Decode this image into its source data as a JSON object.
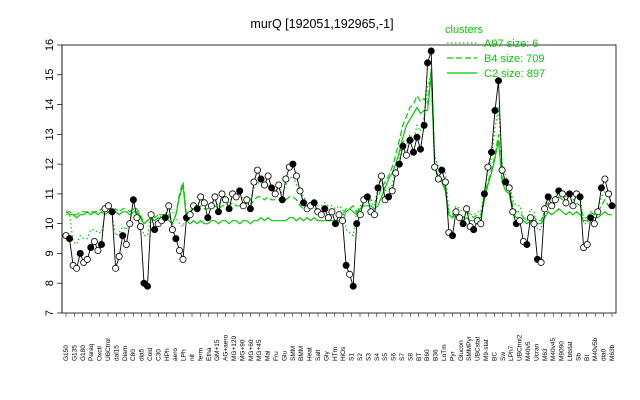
{
  "chart_data": {
    "type": "line",
    "title": "murQ [192051,192965,-1]",
    "xlabel": "",
    "ylabel": "",
    "ylim": [
      7,
      16
    ],
    "yticks": [
      7,
      8,
      9,
      10,
      11,
      12,
      13,
      14,
      15,
      16
    ],
    "grid": false,
    "legend": {
      "title": "clusters",
      "placement": "top-right",
      "color": "#00cc00",
      "entries": [
        {
          "label": "A97 size: 6",
          "style": "dotted"
        },
        {
          "label": "B4 size: 709",
          "style": "dashed"
        },
        {
          "label": "C2 size: 897",
          "style": "solid"
        }
      ]
    },
    "x_tick_labels": [
      "G150",
      "G135",
      "G180",
      "Paraq",
      "Oxctl",
      "UBCtrol",
      "dal15",
      "Diam",
      "C80",
      "dia5",
      "Cold",
      "C30",
      "HPh",
      "aero",
      "LPh",
      "nit",
      "ferm",
      "Etha",
      "GM+15",
      "AG+aero",
      "MG+120",
      "MG+90",
      "MG+60",
      "MG+45",
      "Mal",
      "Fru",
      "Glu",
      "SMM",
      "BMM",
      "Heat",
      "Salt",
      "Gly",
      "HTm",
      "HiOs",
      "S1",
      "S2",
      "S3",
      "S4",
      "S5",
      "S6",
      "S7",
      "S8",
      "BT",
      "B60",
      "B36",
      "LoTm",
      "Pyr",
      "Glucon",
      "SMMPyr",
      "UBCstat",
      "M9-stat",
      "BC",
      "Sw",
      "LPh7",
      "UBCtrol2",
      "M40v5",
      "Ucran",
      "M63",
      "M40v45",
      "M9090",
      "Lbtstat",
      "Sb",
      "BI",
      "M40v5b",
      "dia0",
      "M63b"
    ],
    "series_color": "#000000",
    "marker_fill": "#ffffff",
    "marker_fill_dark": "#000000",
    "profile_color": "#00cc00",
    "series": [
      {
        "name": "murQ",
        "values": [
          9.6,
          9.5,
          8.6,
          8.5,
          9.0,
          8.7,
          8.8,
          9.2,
          9.4,
          9.1,
          9.3,
          10.5,
          10.6,
          10.4,
          8.5,
          8.9,
          9.6,
          9.3,
          10.0,
          10.8,
          10.2,
          9.9,
          8.0,
          7.9,
          10.3,
          9.8,
          10.0,
          10.1,
          10.2,
          10.6,
          9.8,
          9.5,
          9.1,
          8.8,
          10.2,
          10.3,
          10.6,
          10.5,
          10.9,
          10.7,
          10.2,
          10.6,
          10.9,
          10.4,
          11.0,
          10.8,
          10.5,
          11.0,
          10.9,
          11.1,
          10.6,
          10.8,
          10.5,
          11.4,
          11.8,
          11.5,
          11.3,
          11.6,
          11.2,
          11.0,
          11.3,
          10.8,
          11.5,
          11.9,
          12.0,
          11.6,
          11.1,
          10.7,
          10.5,
          10.6,
          10.7,
          10.4,
          10.3,
          10.5,
          10.2,
          10.4,
          10.0,
          10.3,
          10.1,
          8.6,
          8.3,
          7.9,
          10.0,
          10.3,
          10.8,
          10.9,
          10.4,
          10.3,
          11.2,
          11.6,
          10.8,
          10.9,
          11.1,
          11.7,
          12.0,
          12.6,
          12.3,
          12.8,
          12.4,
          12.9,
          12.5,
          13.3,
          15.4,
          15.8,
          11.9,
          11.5,
          11.8,
          11.4,
          9.7,
          9.6,
          10.4,
          10.2,
          10.0,
          10.5,
          9.9,
          9.8,
          10.1,
          10.0,
          11.0,
          11.9,
          12.4,
          13.8,
          14.8,
          11.8,
          11.4,
          11.2,
          10.4,
          10.0,
          10.1,
          9.4,
          9.3,
          10.2,
          10.0,
          8.8,
          8.7,
          10.5,
          10.9,
          10.6,
          10.8,
          11.1,
          11.0,
          10.7,
          11.0,
          10.6,
          11.0,
          10.9,
          9.2,
          9.3,
          10.2,
          10.0,
          10.4,
          11.2,
          11.5,
          11.0,
          10.6
        ]
      },
      {
        "name": "A97",
        "values": [
          10.3,
          10.3,
          9.4,
          9.3,
          9.6,
          9.5,
          9.5,
          9.8,
          9.8,
          9.7,
          9.7,
          10.3,
          10.4,
          10.3,
          9.6,
          9.7,
          9.9,
          9.8,
          10.1,
          10.5,
          10.4,
          10.3,
          9.6,
          9.6,
          10.3,
          10.2,
          10.3,
          10.2,
          10.3,
          10.6,
          10.4,
          10.2,
          10.0,
          9.9,
          10.3,
          10.4,
          10.6,
          10.6,
          10.8,
          10.7,
          10.6,
          10.7,
          10.8,
          10.6,
          10.9,
          10.8,
          10.7,
          10.9,
          10.9,
          11.0,
          10.8,
          10.9,
          10.8,
          11.2,
          11.4,
          11.3,
          11.2,
          11.3,
          11.2,
          11.1,
          11.2,
          11.0,
          11.3,
          11.5,
          11.6,
          11.3,
          11.1,
          10.9,
          10.7,
          10.7,
          10.8,
          10.6,
          10.6,
          10.7,
          10.6,
          10.6,
          10.5,
          10.6,
          10.5,
          9.8,
          9.7,
          9.6,
          10.4,
          10.6,
          10.8,
          10.9,
          10.7,
          10.6,
          11.2,
          11.5,
          11.1,
          11.2,
          11.3,
          11.8,
          12.2,
          12.8,
          12.6,
          13.0,
          12.8,
          13.3,
          13.1,
          13.6,
          14.6,
          15.0,
          12.3,
          11.9,
          11.9,
          11.7,
          10.4,
          10.3,
          10.6,
          10.5,
          10.4,
          10.6,
          10.3,
          10.3,
          10.4,
          10.4,
          11.1,
          11.8,
          12.2,
          13.2,
          13.9,
          12.0,
          11.6,
          11.4,
          10.8,
          10.6,
          10.6,
          10.2,
          10.1,
          10.5,
          10.4,
          9.8,
          9.8,
          10.6,
          10.9,
          10.8,
          10.9,
          11.1,
          11.0,
          10.9,
          11.0,
          10.8,
          11.0,
          10.9,
          10.0,
          10.0,
          10.4,
          10.3,
          10.5,
          10.9,
          11.1,
          10.9,
          10.7
        ]
      },
      {
        "name": "B4",
        "values": [
          10.4,
          10.4,
          10.3,
          10.3,
          10.4,
          10.4,
          10.4,
          10.4,
          10.4,
          10.4,
          10.5,
          10.4,
          10.5,
          10.4,
          10.5,
          10.4,
          10.5,
          10.5,
          10.4,
          10.5,
          10.5,
          10.3,
          10.0,
          10.1,
          10.4,
          10.2,
          10.3,
          10.3,
          10.3,
          10.3,
          10.0,
          10.3,
          11.0,
          11.4,
          10.3,
          10.4,
          10.5,
          10.5,
          10.6,
          10.5,
          10.5,
          10.6,
          10.6,
          10.5,
          10.6,
          10.6,
          10.6,
          10.7,
          10.6,
          10.6,
          10.6,
          10.7,
          10.6,
          10.8,
          10.9,
          10.9,
          10.8,
          10.9,
          10.8,
          10.8,
          10.8,
          10.7,
          10.8,
          10.9,
          10.9,
          10.8,
          10.6,
          10.5,
          10.5,
          10.5,
          10.5,
          10.5,
          10.4,
          10.5,
          10.4,
          10.4,
          10.3,
          10.4,
          10.3,
          10.5,
          10.5,
          10.6,
          10.4,
          10.5,
          10.7,
          10.8,
          10.8,
          10.7,
          10.9,
          11.2,
          11.4,
          11.6,
          11.9,
          12.3,
          12.8,
          13.3,
          13.6,
          13.9,
          14.0,
          14.3,
          14.1,
          14.2,
          14.0,
          15.2,
          11.9,
          11.6,
          11.5,
          11.2,
          10.3,
          10.2,
          10.5,
          10.3,
          10.2,
          10.4,
          10.3,
          10.2,
          10.3,
          10.3,
          10.9,
          11.4,
          11.8,
          12.3,
          13.0,
          11.6,
          11.3,
          11.2,
          10.6,
          10.4,
          10.4,
          10.2,
          10.1,
          10.3,
          10.2,
          10.1,
          10.1,
          10.4,
          10.7,
          10.6,
          10.7,
          10.9,
          10.8,
          10.6,
          10.7,
          10.6,
          10.7,
          10.6,
          10.2,
          10.2,
          10.4,
          10.3,
          10.4,
          10.6,
          10.8,
          10.6,
          10.5
        ]
      },
      {
        "name": "C2",
        "values": [
          10.4,
          10.3,
          10.3,
          10.2,
          10.3,
          10.3,
          10.4,
          10.3,
          10.4,
          10.3,
          10.4,
          10.3,
          10.4,
          10.3,
          10.4,
          10.3,
          10.4,
          10.4,
          10.3,
          10.4,
          10.4,
          10.2,
          10.0,
          10.1,
          10.2,
          10.1,
          10.2,
          10.1,
          10.2,
          10.1,
          10.0,
          10.3,
          10.9,
          11.3,
          10.1,
          10.0,
          10.1,
          10.0,
          10.1,
          10.0,
          10.0,
          10.1,
          10.1,
          10.0,
          10.1,
          10.1,
          10.0,
          10.1,
          10.1,
          10.0,
          10.1,
          10.1,
          10.0,
          10.1,
          10.1,
          10.2,
          10.1,
          10.2,
          10.1,
          10.1,
          10.1,
          10.1,
          10.1,
          10.2,
          10.2,
          10.1,
          10.2,
          10.1,
          10.2,
          10.1,
          10.2,
          10.1,
          10.1,
          10.1,
          10.1,
          10.1,
          10.1,
          10.1,
          10.1,
          10.4,
          10.5,
          10.4,
          10.3,
          10.5,
          10.6,
          10.6,
          10.6,
          10.5,
          10.6,
          10.9,
          11.2,
          11.5,
          11.7,
          12.0,
          12.4,
          12.9,
          13.3,
          13.5,
          13.7,
          13.9,
          13.7,
          13.8,
          13.8,
          15.0,
          11.9,
          11.6,
          11.4,
          11.1,
          10.3,
          10.2,
          10.3,
          10.2,
          10.1,
          10.2,
          10.1,
          10.1,
          10.2,
          10.2,
          10.8,
          11.3,
          11.7,
          12.2,
          12.8,
          11.4,
          11.1,
          11.0,
          10.4,
          10.2,
          10.2,
          10.1,
          10.0,
          10.1,
          10.1,
          10.0,
          10.0,
          10.2,
          10.4,
          10.3,
          10.4,
          10.5,
          10.4,
          10.3,
          10.4,
          10.3,
          10.4,
          10.3,
          10.1,
          10.1,
          10.2,
          10.2,
          10.2,
          10.3,
          10.4,
          10.3,
          10.3
        ]
      }
    ]
  }
}
